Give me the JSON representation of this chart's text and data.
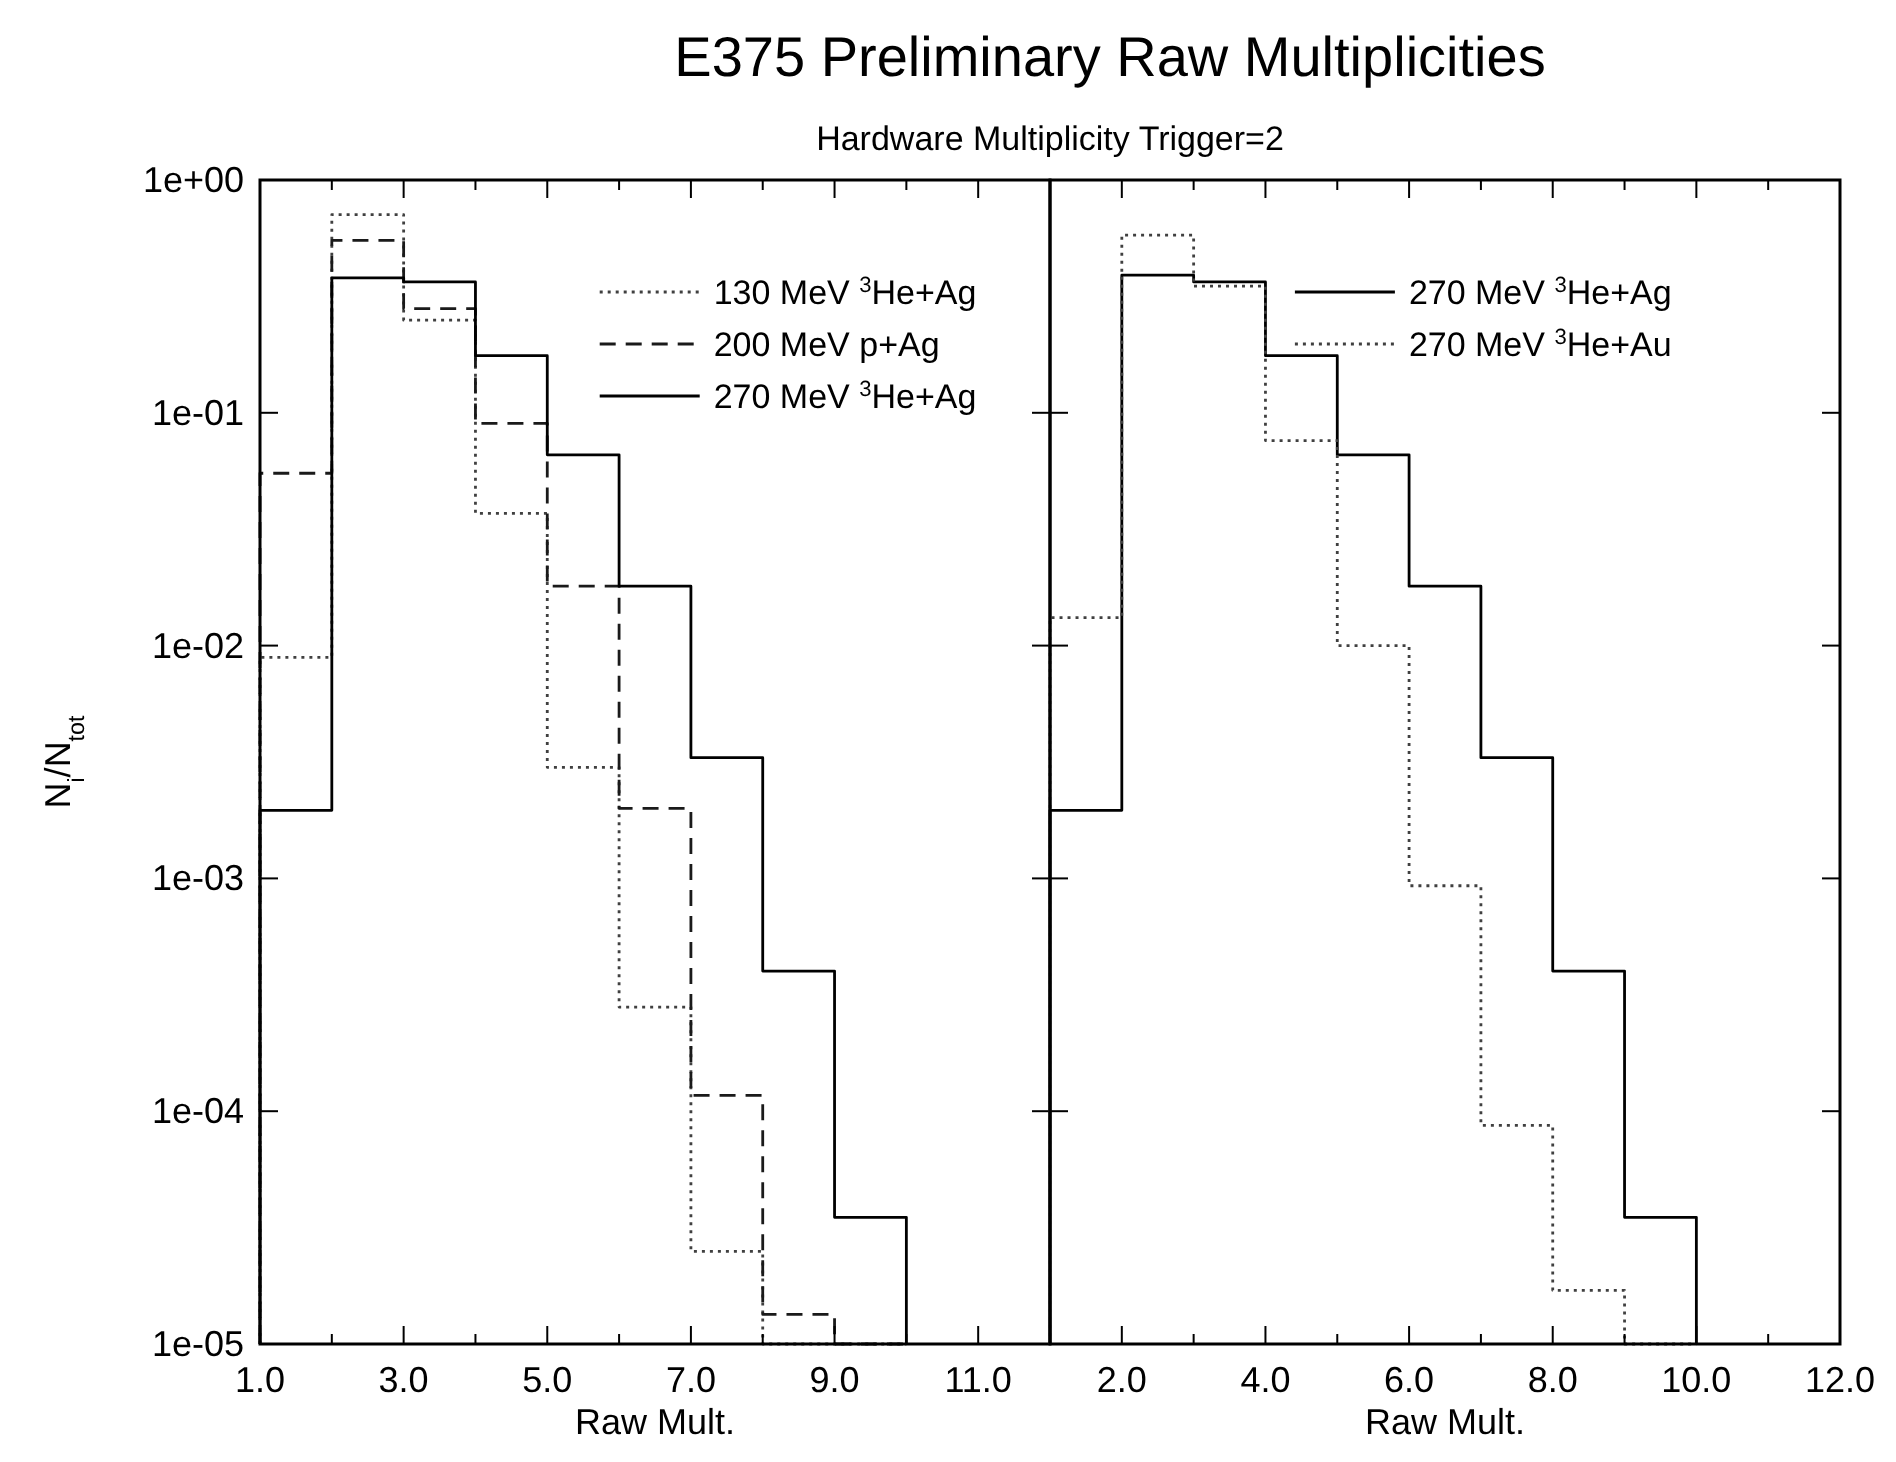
{
  "chart_data": [
    {
      "type": "histogram",
      "title": "E375 Preliminary Raw Multiplicities",
      "subtitle": "Hardware Multiplicity Trigger=2",
      "xlabel": "Raw Mult.",
      "ylabel": "N$_{i}$/N$_{tot}$",
      "log": "y",
      "legend": "top right",
      "bins": [
        1,
        2,
        3,
        4,
        5,
        6,
        7,
        8,
        9,
        10
      ],
      "xlim": [
        1,
        12
      ],
      "xticks": [
        {
          "value": 1,
          "label": "1.0"
        },
        {
          "value": 2,
          "label": null
        },
        {
          "value": 3,
          "label": "3.0"
        },
        {
          "value": 4,
          "label": null
        },
        {
          "value": 5,
          "label": "5.0"
        },
        {
          "value": 6,
          "label": null
        },
        {
          "value": 7,
          "label": "7.0"
        },
        {
          "value": 8,
          "label": null
        },
        {
          "value": 9,
          "label": "9.0"
        },
        {
          "value": 10,
          "label": null
        },
        {
          "value": 11,
          "label": "11.0"
        }
      ],
      "ylim": [
        1e-05,
        1
      ],
      "yticks": [
        {
          "value": 1,
          "label": "1e+00"
        },
        {
          "value": 0.1,
          "label": "1e-01"
        },
        {
          "value": 0.01,
          "label": "1e-02"
        },
        {
          "value": 0.001,
          "label": "1e-03"
        },
        {
          "value": 0.0001,
          "label": "1e-04"
        },
        {
          "value": 1e-05,
          "label": "1e-05"
        }
      ],
      "series": [
        {
          "name": "130 MeV $^{3}$He+Ag",
          "color": "#404040",
          "line_style": "dotted",
          "values": [
            0.0089,
            0.71,
            0.25,
            0.037,
            0.003,
            0.00028,
            2.5e-05,
            null,
            null
          ]
        },
        {
          "name": "200 MeV p+Ag",
          "color": "#1a1a1a",
          "line_style": "dashed",
          "values": [
            0.055,
            0.55,
            0.28,
            0.09,
            0.018,
            0.002,
            0.000117,
            1.34e-05,
            null
          ]
        },
        {
          "name": "270 MeV $^{3}$He+Ag",
          "color": "#000000",
          "line_style": "solid",
          "values": [
            0.00196,
            0.38,
            0.365,
            0.176,
            0.066,
            0.018,
            0.0033,
            0.0004,
            3.5e-05
          ]
        }
      ]
    },
    {
      "type": "histogram",
      "xlabel": "Raw Mult.",
      "log": "y",
      "legend": "top right",
      "tick_labels": "x",
      "bins": [
        1,
        2,
        3,
        4,
        5,
        6,
        7,
        8,
        9,
        10
      ],
      "xlim": [
        1,
        12
      ],
      "xticks": [
        {
          "value": 1,
          "label": null
        },
        {
          "value": 2,
          "label": "2.0"
        },
        {
          "value": 3,
          "label": null
        },
        {
          "value": 4,
          "label": "4.0"
        },
        {
          "value": 5,
          "label": null
        },
        {
          "value": 6,
          "label": "6.0"
        },
        {
          "value": 7,
          "label": null
        },
        {
          "value": 8,
          "label": "8.0"
        },
        {
          "value": 9,
          "label": null
        },
        {
          "value": 10,
          "label": "10.0"
        },
        {
          "value": 11,
          "label": null
        },
        {
          "value": 12,
          "label": "12.0"
        }
      ],
      "ylim": [
        1e-05,
        1
      ],
      "yticks": [
        1,
        0.1,
        0.01,
        0.001,
        0.0001,
        1e-05
      ],
      "series": [
        {
          "name": "270 MeV $^{3}$He+Ag",
          "color": "#000000",
          "line_style": "solid",
          "values": [
            0.00196,
            0.39,
            0.365,
            0.176,
            0.066,
            0.018,
            0.0033,
            0.0004,
            3.5e-05
          ]
        },
        {
          "name": "270 MeV $^{3}$He+Au",
          "color": "#404040",
          "line_style": "dotted",
          "values": [
            0.0132,
            0.58,
            0.35,
            0.076,
            0.01,
            0.00093,
            8.7e-05,
            1.7e-05,
            null
          ]
        }
      ]
    }
  ]
}
